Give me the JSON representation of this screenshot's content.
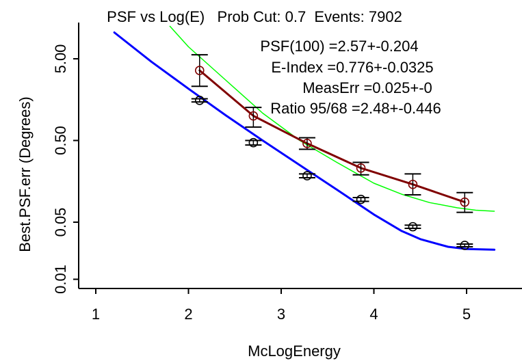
{
  "chart_data": {
    "type": "scatter",
    "title": "PSF vs Log(E)   Prob Cut: 0.7  Events: 7902",
    "xlabel": "McLogEnergy",
    "ylabel": "Best.PSF.err (Degrees)",
    "xscale": "linear",
    "yscale": "log",
    "xlim": [
      0.75,
      5.4
    ],
    "ylim": [
      0.0075,
      14
    ],
    "x_ticks": [
      1,
      2,
      3,
      4,
      5
    ],
    "x_tick_labels": [
      "1",
      "2",
      "3",
      "4",
      "5"
    ],
    "y_ticks": [
      0.01,
      0.05,
      0.5,
      5
    ],
    "y_tick_labels": [
      "0.01",
      "0.05",
      "0.50",
      "5.00"
    ],
    "grid": false,
    "annotations": [
      "PSF(100) =2.57+-0.204",
      "E-Index =0.776+-0.0325",
      "MeasErr =0.025+-0",
      "Ratio 95/68 =2.48+-0.446"
    ],
    "series": [
      {
        "color": "#800000",
        "marker": "circle",
        "x": [
          2.12,
          2.7,
          3.28,
          3.86,
          4.42,
          4.98
        ],
        "y": [
          3.6,
          1.0,
          0.46,
          0.23,
          0.145,
          0.088
        ],
        "err_low": [
          2.3,
          0.73,
          0.39,
          0.19,
          0.108,
          0.066
        ],
        "err_high": [
          5.6,
          1.27,
          0.54,
          0.27,
          0.195,
          0.115
        ]
      },
      {
        "color": "#000000",
        "marker": "circle",
        "x": [
          2.12,
          2.7,
          3.28,
          3.86,
          4.42,
          4.98
        ],
        "y": [
          1.55,
          0.47,
          0.185,
          0.095,
          0.044,
          0.026
        ],
        "err_low": [
          1.48,
          0.44,
          0.175,
          0.09,
          0.042,
          0.025
        ],
        "err_high": [
          1.62,
          0.5,
          0.195,
          0.1,
          0.046,
          0.027
        ]
      },
      {
        "color": "#0000ff",
        "style": "line",
        "x": [
          1.2,
          1.6,
          2.0,
          2.4,
          2.8,
          3.2,
          3.6,
          4.0,
          4.3,
          4.5,
          4.8,
          5.0,
          5.3
        ],
        "y": [
          10.5,
          4.6,
          2.15,
          1.02,
          0.5,
          0.25,
          0.125,
          0.062,
          0.039,
          0.031,
          0.025,
          0.0235,
          0.023
        ]
      },
      {
        "color": "#00ff00",
        "style": "line",
        "x": [
          1.8,
          2.0,
          2.4,
          2.8,
          3.2,
          3.6,
          4.0,
          4.3,
          4.6,
          4.9,
          5.1,
          5.3
        ],
        "y": [
          12.5,
          7.0,
          2.75,
          1.08,
          0.5,
          0.27,
          0.15,
          0.11,
          0.087,
          0.075,
          0.07,
          0.068
        ]
      },
      {
        "color": "#800000",
        "style": "line",
        "x": [
          2.12,
          2.7,
          3.28,
          3.86,
          4.42,
          4.98
        ],
        "y": [
          3.6,
          1.0,
          0.46,
          0.23,
          0.145,
          0.088
        ]
      }
    ]
  }
}
